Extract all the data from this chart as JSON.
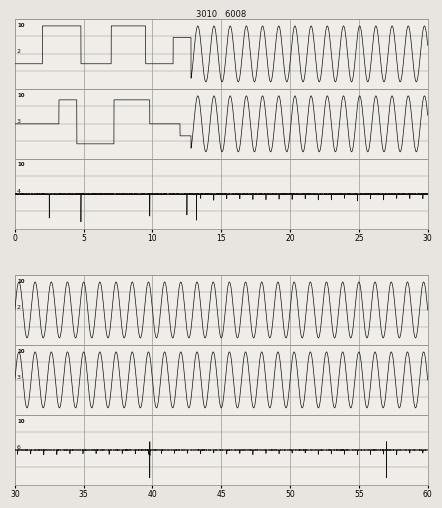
{
  "title_top": "3010   6008",
  "panel1_xlim": [
    0,
    30
  ],
  "panel2_xlim": [
    30,
    60
  ],
  "panel1_xticks": [
    0,
    5,
    10,
    15,
    20,
    25,
    30
  ],
  "panel2_xticks": [
    30,
    35,
    40,
    45,
    50,
    55,
    60
  ],
  "channel_labels": [
    "10",
    "10",
    "10"
  ],
  "row_labels_p1": [
    "2",
    "3",
    "4"
  ],
  "row_labels_p2": [
    "2",
    "3",
    "6"
  ],
  "bg_color": "#f0ede8",
  "line_color": "#111111",
  "grid_color": "#999990",
  "fig_bg": "#e8e5e0",
  "n_sublines": 4,
  "sin_freq": 0.85,
  "sin_amp1": 0.85,
  "sin_amp2": 0.7
}
